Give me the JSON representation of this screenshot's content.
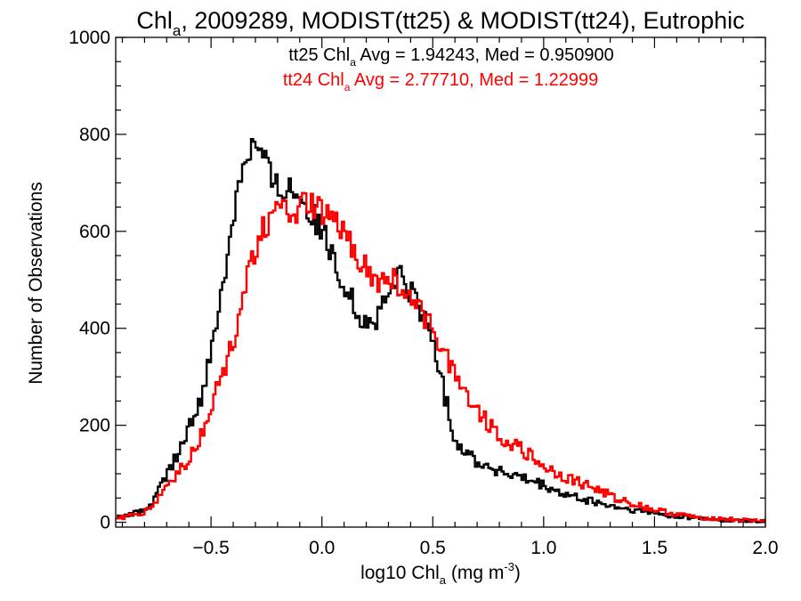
{
  "chart_data": {
    "type": "line",
    "title": {
      "parts": [
        "Chl",
        "a",
        ", 2009289, MODIST(tt25) & MODIST(tt24), Eutrophic"
      ]
    },
    "xlabel": {
      "parts": [
        "log10 Chl",
        "a",
        " (mg m",
        "-3",
        ")"
      ]
    },
    "ylabel": "Number of Observations",
    "xlim": [
      -0.93,
      2.0
    ],
    "ylim": [
      -10,
      1000
    ],
    "xticks": [
      {
        "value": -0.5,
        "label": "−0.5"
      },
      {
        "value": 0.0,
        "label": "0.0"
      },
      {
        "value": 0.5,
        "label": "0.5"
      },
      {
        "value": 1.0,
        "label": "1.0"
      },
      {
        "value": 1.5,
        "label": "1.5"
      },
      {
        "value": 2.0,
        "label": "2.0"
      }
    ],
    "yticks": [
      {
        "value": 0,
        "label": "0"
      },
      {
        "value": 200,
        "label": "200"
      },
      {
        "value": 400,
        "label": "400"
      },
      {
        "value": 600,
        "label": "600"
      },
      {
        "value": 800,
        "label": "800"
      },
      {
        "value": 1000,
        "label": "1000"
      }
    ],
    "grid": false,
    "legend_position": "top-center",
    "series": [
      {
        "name": "tt25",
        "color": "#000000",
        "legend": {
          "parts": [
            "tt25 Chl",
            "a",
            " Avg = 1.94243, Med = 0.950900"
          ]
        },
        "x": [
          -0.9,
          -0.8,
          -0.75,
          -0.7,
          -0.65,
          -0.6,
          -0.55,
          -0.5,
          -0.45,
          -0.4,
          -0.35,
          -0.32,
          -0.3,
          -0.28,
          -0.25,
          -0.22,
          -0.2,
          -0.15,
          -0.1,
          -0.05,
          0.0,
          0.05,
          0.1,
          0.15,
          0.2,
          0.25,
          0.3,
          0.35,
          0.4,
          0.45,
          0.5,
          0.55,
          0.6,
          0.7,
          0.8,
          0.9,
          1.0,
          1.1,
          1.2,
          1.3,
          1.4,
          1.5,
          1.6,
          1.7,
          1.8,
          1.9,
          2.0
        ],
        "y": [
          10,
          25,
          50,
          100,
          140,
          190,
          250,
          340,
          480,
          640,
          760,
          775,
          785,
          770,
          740,
          700,
          690,
          695,
          680,
          640,
          600,
          540,
          500,
          440,
          410,
          420,
          470,
          510,
          480,
          430,
          380,
          270,
          170,
          125,
          105,
          90,
          75,
          55,
          45,
          33,
          25,
          18,
          12,
          8,
          5,
          3,
          2
        ]
      },
      {
        "name": "tt24",
        "color": "#ff0000",
        "legend": {
          "parts": [
            "tt24 Chl",
            "a",
            " Avg = 2.77710, Med = 1.22999"
          ]
        },
        "x": [
          -0.9,
          -0.8,
          -0.75,
          -0.7,
          -0.65,
          -0.6,
          -0.55,
          -0.5,
          -0.45,
          -0.4,
          -0.35,
          -0.3,
          -0.25,
          -0.2,
          -0.15,
          -0.1,
          -0.05,
          0.0,
          0.05,
          0.1,
          0.15,
          0.2,
          0.25,
          0.3,
          0.35,
          0.4,
          0.45,
          0.5,
          0.55,
          0.6,
          0.7,
          0.8,
          0.9,
          1.0,
          1.1,
          1.2,
          1.3,
          1.4,
          1.5,
          1.6,
          1.7,
          1.8,
          1.9,
          2.0
        ],
        "y": [
          10,
          20,
          40,
          75,
          100,
          130,
          170,
          240,
          300,
          370,
          480,
          570,
          620,
          635,
          640,
          650,
          650,
          635,
          620,
          590,
          560,
          520,
          490,
          500,
          490,
          450,
          430,
          410,
          350,
          310,
          230,
          180,
          150,
          115,
          92,
          75,
          55,
          38,
          25,
          16,
          10,
          7,
          4,
          2
        ]
      }
    ]
  }
}
